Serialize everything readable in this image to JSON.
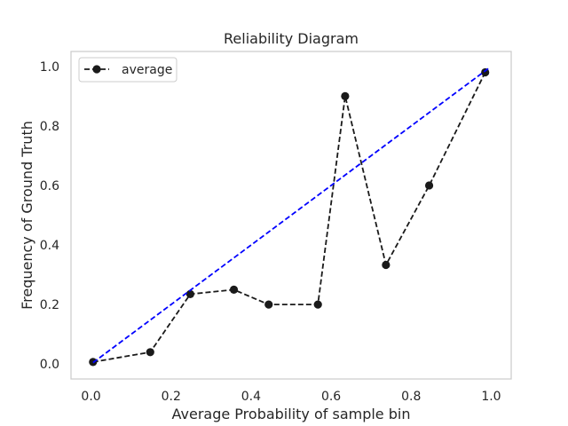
{
  "chart_data": {
    "type": "line",
    "title": "Reliability Diagram",
    "xlabel": "Average Probability of sample bin",
    "ylabel": "Frequency of Ground Truth",
    "xlim": [
      -0.05,
      1.05
    ],
    "ylim": [
      -0.05,
      1.05
    ],
    "xticks": [
      0.0,
      0.2,
      0.4,
      0.6,
      0.8,
      1.0
    ],
    "xtick_labels": [
      "0.0",
      "0.2",
      "0.4",
      "0.6",
      "0.8",
      "1.0"
    ],
    "yticks": [
      0.0,
      0.2,
      0.4,
      0.6,
      0.8,
      1.0
    ],
    "ytick_labels": [
      "0.0",
      "0.2",
      "0.4",
      "0.6",
      "0.8",
      "1.0"
    ],
    "grid": false,
    "legend_position": "top-left",
    "series": [
      {
        "name": "average",
        "color": "#1a1a1a",
        "linestyle": "dashed",
        "marker": "circle",
        "x": [
          0.005,
          0.148,
          0.248,
          0.357,
          0.444,
          0.567,
          0.635,
          0.737,
          0.845,
          0.985
        ],
        "y": [
          0.007,
          0.04,
          0.235,
          0.25,
          0.2,
          0.2,
          0.9,
          0.333,
          0.6,
          0.98
        ]
      },
      {
        "color": "#0000ff",
        "linestyle": "dashed",
        "marker": "none",
        "x": [
          0.005,
          0.995
        ],
        "y": [
          0.005,
          0.995
        ]
      }
    ]
  }
}
